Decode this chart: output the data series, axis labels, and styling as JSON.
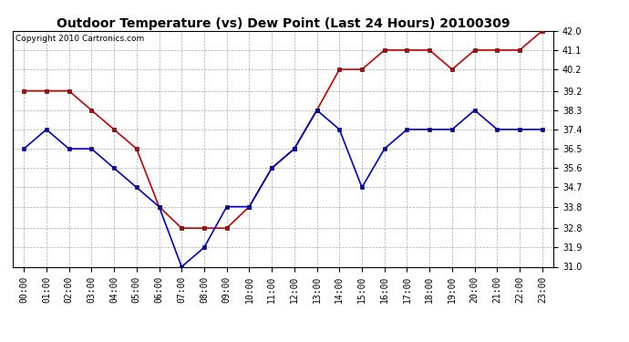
{
  "title": "Outdoor Temperature (vs) Dew Point (Last 24 Hours) 20100309",
  "copyright": "Copyright 2010 Cartronics.com",
  "hours": [
    "00:00",
    "01:00",
    "02:00",
    "03:00",
    "04:00",
    "05:00",
    "06:00",
    "07:00",
    "08:00",
    "09:00",
    "10:00",
    "11:00",
    "12:00",
    "13:00",
    "14:00",
    "15:00",
    "16:00",
    "17:00",
    "18:00",
    "19:00",
    "20:00",
    "21:00",
    "22:00",
    "23:00"
  ],
  "temp": [
    39.2,
    39.2,
    39.2,
    38.3,
    37.4,
    36.5,
    33.8,
    32.8,
    32.8,
    32.8,
    33.8,
    35.6,
    36.5,
    38.3,
    40.2,
    40.2,
    41.1,
    41.1,
    41.1,
    40.2,
    41.1,
    41.1,
    41.1,
    42.0
  ],
  "dew": [
    36.5,
    37.4,
    36.5,
    36.5,
    35.6,
    34.7,
    33.8,
    31.0,
    31.9,
    33.8,
    33.8,
    35.6,
    36.5,
    38.3,
    37.4,
    34.7,
    36.5,
    37.4,
    37.4,
    37.4,
    38.3,
    37.4,
    37.4,
    37.4
  ],
  "temp_color": "#cc0000",
  "dew_color": "#0000cc",
  "bg_color": "#ffffff",
  "grid_color": "#aaaaaa",
  "ylim_min": 31.0,
  "ylim_max": 42.0,
  "yticks": [
    31.0,
    31.9,
    32.8,
    33.8,
    34.7,
    35.6,
    36.5,
    37.4,
    38.3,
    39.2,
    40.2,
    41.1,
    42.0
  ],
  "title_fontsize": 10,
  "copyright_fontsize": 6.5,
  "tick_fontsize": 7,
  "marker": "s",
  "markersize": 3,
  "linewidth": 1.2
}
